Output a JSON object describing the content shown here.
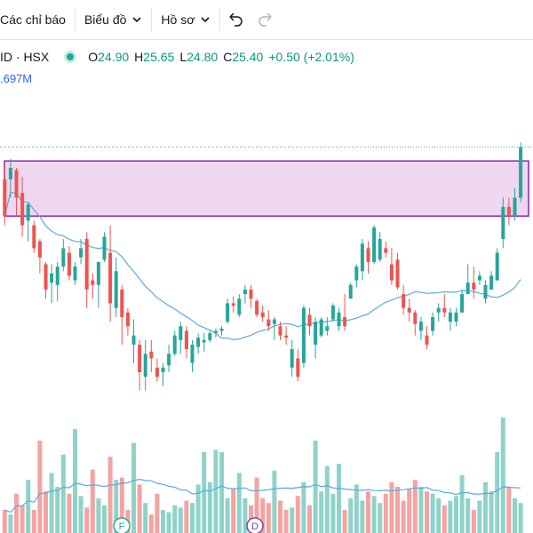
{
  "toolbar": {
    "indicators_label": "Các chỉ báo",
    "chart_label": "Biểu đồ",
    "profile_label": "Hồ sơ",
    "undo_icon": "undo-icon",
    "redo_icon": "redo-icon"
  },
  "legend": {
    "symbol": "ID · HSX",
    "status_color": "#26a69a",
    "o_key": "O",
    "o_val": "24.90",
    "h_key": "H",
    "h_val": "25.65",
    "l_key": "L",
    "l_val": "24.80",
    "c_key": "C",
    "c_val": "25.40",
    "change": "+0.50 (+2.01%)",
    "volume": ".697M"
  },
  "colors": {
    "up": "#26a69a",
    "down": "#ef5350",
    "up_vol": "#8fd3c8",
    "down_vol": "#f4a3a1",
    "ma": "#5aa9e6",
    "zone_fill": "#ecd0ee",
    "zone_border": "#8e24aa"
  },
  "chart_data": {
    "type": "candlestick",
    "candles": [
      [
        25.8,
        26.1,
        24.8,
        25.0
      ],
      [
        25.8,
        26.25,
        25.4,
        26.05
      ],
      [
        26.0,
        26.05,
        25.0,
        25.4
      ],
      [
        25.5,
        25.85,
        24.55,
        24.8
      ],
      [
        24.9,
        25.3,
        24.45,
        25.25
      ],
      [
        24.8,
        24.9,
        24.2,
        24.3
      ],
      [
        24.45,
        24.5,
        23.75,
        24.1
      ],
      [
        23.95,
        24.0,
        23.2,
        23.4
      ],
      [
        23.55,
        23.95,
        23.1,
        23.75
      ],
      [
        23.5,
        24.0,
        23.15,
        23.9
      ],
      [
        23.9,
        24.5,
        23.8,
        24.3
      ],
      [
        24.2,
        24.35,
        23.6,
        23.7
      ],
      [
        23.6,
        24.0,
        23.5,
        23.9
      ],
      [
        24.1,
        24.5,
        23.95,
        24.3
      ],
      [
        24.5,
        24.65,
        23.0,
        23.4
      ],
      [
        23.6,
        23.75,
        23.2,
        23.5
      ],
      [
        23.5,
        24.0,
        23.0,
        24.0
      ],
      [
        24.05,
        24.65,
        24.0,
        24.55
      ],
      [
        24.2,
        24.8,
        22.7,
        23.1
      ],
      [
        23.0,
        24.1,
        22.8,
        23.8
      ],
      [
        23.4,
        23.5,
        22.2,
        22.8
      ],
      [
        22.9,
        23.0,
        22.4,
        22.6
      ],
      [
        22.2,
        22.75,
        21.8,
        22.4
      ],
      [
        22.2,
        22.3,
        21.2,
        21.6
      ],
      [
        21.5,
        22.3,
        21.2,
        22.0
      ],
      [
        22.05,
        22.3,
        21.6,
        21.9
      ],
      [
        21.7,
        21.9,
        21.4,
        21.5
      ],
      [
        21.6,
        21.8,
        21.3,
        21.7
      ],
      [
        21.75,
        22.2,
        21.6,
        22.0
      ],
      [
        22.0,
        22.5,
        21.95,
        22.4
      ],
      [
        22.3,
        22.7,
        22.0,
        22.6
      ],
      [
        22.5,
        22.6,
        21.9,
        22.1
      ],
      [
        21.8,
        22.3,
        21.6,
        22.2
      ],
      [
        22.15,
        22.45,
        22.0,
        22.35
      ],
      [
        22.25,
        22.45,
        22.05,
        22.3
      ],
      [
        22.3,
        22.5,
        22.25,
        22.45
      ],
      [
        22.45,
        22.55,
        22.35,
        22.5
      ],
      [
        22.5,
        22.6,
        22.4,
        22.55
      ],
      [
        22.7,
        23.2,
        22.65,
        23.1
      ],
      [
        23.1,
        23.25,
        22.9,
        23.05
      ],
      [
        22.85,
        23.3,
        22.8,
        23.2
      ],
      [
        23.3,
        23.5,
        23.1,
        23.4
      ],
      [
        23.4,
        23.5,
        23.0,
        23.2
      ],
      [
        23.15,
        23.2,
        22.8,
        22.85
      ],
      [
        22.9,
        23.05,
        22.7,
        22.8
      ],
      [
        22.75,
        22.95,
        22.5,
        22.6
      ],
      [
        22.65,
        22.8,
        22.3,
        22.75
      ],
      [
        22.6,
        22.7,
        22.3,
        22.4
      ],
      [
        22.4,
        22.6,
        22.2,
        22.35
      ],
      [
        21.7,
        22.3,
        21.5,
        22.1
      ],
      [
        21.9,
        22.1,
        21.4,
        21.5
      ],
      [
        21.8,
        23.05,
        21.7,
        23.0
      ],
      [
        22.85,
        23.0,
        22.4,
        22.6
      ],
      [
        22.2,
        22.8,
        21.9,
        22.7
      ],
      [
        22.4,
        22.8,
        22.35,
        22.75
      ],
      [
        22.5,
        22.8,
        22.4,
        22.6
      ],
      [
        22.75,
        23.1,
        22.7,
        23.05
      ],
      [
        22.6,
        23.0,
        22.5,
        22.9
      ],
      [
        22.8,
        23.3,
        22.5,
        22.6
      ],
      [
        23.2,
        23.55,
        23.2,
        23.5
      ],
      [
        23.6,
        23.95,
        23.45,
        23.9
      ],
      [
        23.8,
        24.5,
        23.6,
        24.4
      ],
      [
        24.3,
        24.45,
        23.75,
        24.0
      ],
      [
        24.0,
        24.8,
        23.95,
        24.75
      ],
      [
        24.05,
        24.65,
        24.0,
        24.5
      ],
      [
        24.3,
        24.45,
        24.1,
        24.2
      ],
      [
        23.95,
        24.3,
        23.5,
        23.6
      ],
      [
        24.05,
        24.2,
        23.4,
        23.45
      ],
      [
        23.3,
        23.5,
        22.85,
        23.0
      ],
      [
        23.0,
        23.2,
        22.7,
        22.9
      ],
      [
        22.9,
        22.95,
        22.4,
        22.65
      ],
      [
        22.5,
        22.8,
        22.3,
        22.7
      ],
      [
        22.4,
        22.6,
        22.1,
        22.2
      ],
      [
        22.5,
        22.9,
        22.4,
        22.8
      ],
      [
        22.9,
        23.1,
        22.7,
        23.0
      ],
      [
        23.0,
        23.3,
        22.8,
        22.9
      ],
      [
        22.7,
        23.0,
        22.5,
        22.9
      ],
      [
        22.7,
        23.0,
        22.6,
        22.9
      ],
      [
        22.9,
        23.4,
        22.9,
        23.3
      ],
      [
        23.3,
        23.95,
        23.3,
        23.55
      ],
      [
        23.55,
        23.9,
        23.2,
        23.4
      ],
      [
        23.6,
        23.8,
        23.5,
        23.7
      ],
      [
        23.2,
        23.6,
        23.1,
        23.5
      ],
      [
        23.4,
        23.8,
        23.4,
        23.7
      ],
      [
        23.6,
        24.3,
        23.6,
        24.2
      ],
      [
        24.5,
        25.4,
        24.3,
        25.2
      ],
      [
        25.2,
        25.4,
        24.8,
        25.0
      ],
      [
        25.0,
        25.6,
        24.9,
        25.4
      ],
      [
        25.4,
        26.6,
        25.3,
        26.5
      ]
    ],
    "volume": [
      0.2,
      0.16,
      0.34,
      0.24,
      0.46,
      0.2,
      0.8,
      0.36,
      0.52,
      0.4,
      0.68,
      0.34,
      0.9,
      0.32,
      0.22,
      0.55,
      0.3,
      0.24,
      0.66,
      0.46,
      0.48,
      0.2,
      0.78,
      0.42,
      0.26,
      0.16,
      0.34,
      0.2,
      0.18,
      0.24,
      0.22,
      0.28,
      0.26,
      0.42,
      0.7,
      0.44,
      0.72,
      0.7,
      0.3,
      0.38,
      0.52,
      0.3,
      0.24,
      0.48,
      0.3,
      0.26,
      0.54,
      0.28,
      0.2,
      0.22,
      0.32,
      0.44,
      0.24,
      0.8,
      0.36,
      0.58,
      0.34,
      0.6,
      0.2,
      0.3,
      0.42,
      0.28,
      0.36,
      0.32,
      0.26,
      0.34,
      0.44,
      0.4,
      0.28,
      0.38,
      0.46,
      0.4,
      0.36,
      0.34,
      0.3,
      0.24,
      0.28,
      0.32,
      0.5,
      0.3,
      0.2,
      0.28,
      0.44,
      0.36,
      0.7,
      1.0,
      0.4,
      0.3,
      0.26
    ],
    "zone": {
      "low": 25.0,
      "high": 26.2
    },
    "reference_price": 26.5,
    "events": [
      "F",
      "D"
    ]
  }
}
